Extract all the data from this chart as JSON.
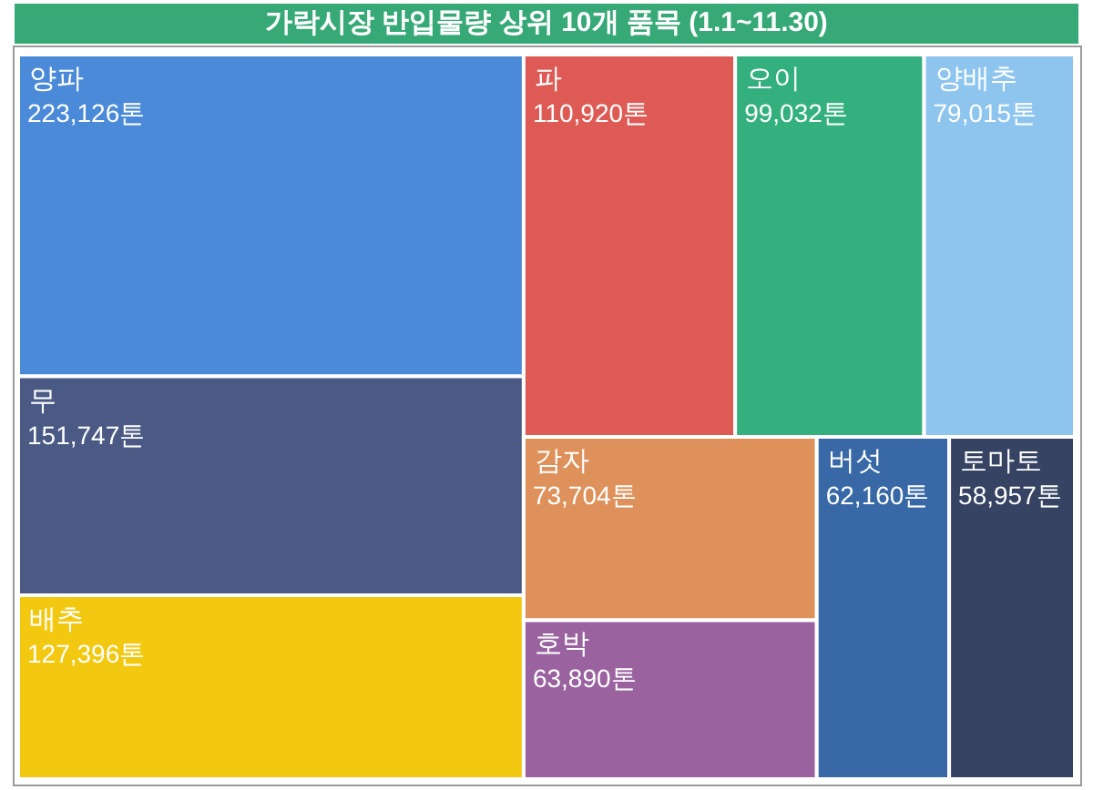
{
  "chart_data": {
    "type": "other",
    "title": "가락시장 반입물량 상위 10개 품목 (1.1~11.30)",
    "categories": [
      "양파",
      "무",
      "배추",
      "파",
      "오이",
      "양배추",
      "감자",
      "호박",
      "버섯",
      "토마토"
    ],
    "values": [
      223126,
      151747,
      127396,
      110920,
      99032,
      79015,
      73704,
      63890,
      62160,
      58957
    ],
    "colors": [
      "#4a8ad8",
      "#4a5a85",
      "#f2c811",
      "#de5b55",
      "#34b07e",
      "#8ec5ee",
      "#de915a",
      "#9a63a0",
      "#3868a6",
      "#374363"
    ],
    "value_labels": [
      "223,126톤",
      "151,747톤",
      "127,396톤",
      "110,920톤",
      "99,032톤",
      "79,015톤",
      "73,704톤",
      "63,890톤",
      "62,160톤",
      "58,957톤"
    ]
  }
}
